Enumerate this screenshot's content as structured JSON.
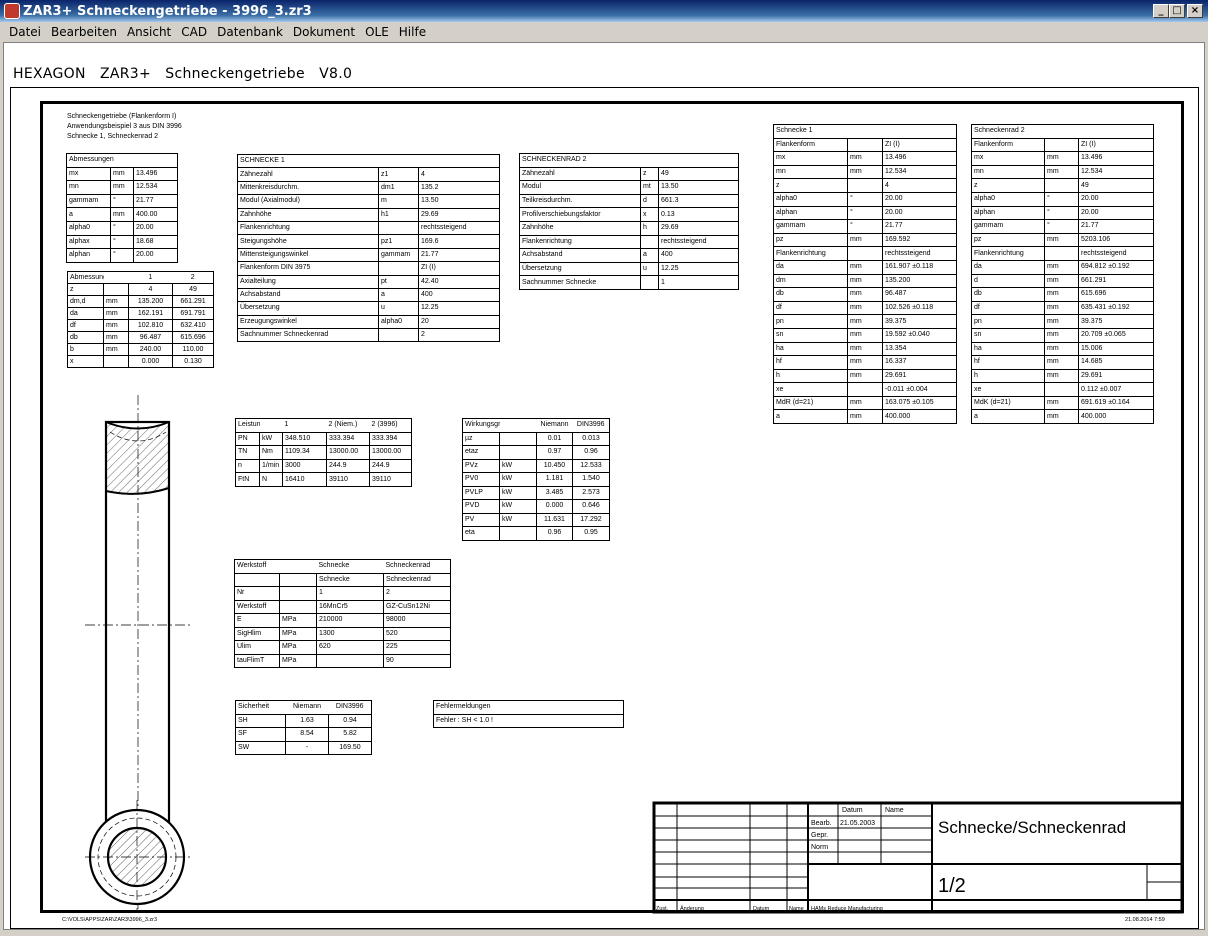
{
  "window": {
    "title": "ZAR3+  Schneckengetriebe  -  3996_3.zr3",
    "minimize": "_",
    "maximize": "□",
    "close": "×"
  },
  "menu": [
    "Datei",
    "Bearbeiten",
    "Ansicht",
    "CAD",
    "Datenbank",
    "Dokument",
    "OLE",
    "Hilfe"
  ],
  "app_heading": "HEXAGON   ZAR3+   Schneckengetriebe   V8.0",
  "notes": [
    "Schneckengetriebe (Flankenform I)",
    "Anwendungsbeispiel 3 aus DIN 3996",
    "Schnecke 1, Schneckenrad 2"
  ],
  "tables": {
    "abm1": {
      "head": [
        "Abmessungen"
      ],
      "rows": [
        [
          "mx",
          "mm",
          "13.496"
        ],
        [
          "mn",
          "mm",
          "12.534"
        ],
        [
          "gammam",
          "°",
          "21.77"
        ],
        [
          "a",
          "mm",
          "400.00"
        ],
        [
          "alpha0",
          "°",
          "20.00"
        ],
        [
          "alphax",
          "°",
          "18.68"
        ],
        [
          "alphan",
          "°",
          "20.00"
        ]
      ]
    },
    "abm2": {
      "head": [
        "Abmessungen",
        "",
        "1",
        "2"
      ],
      "rows": [
        [
          "z",
          "",
          "4",
          "49"
        ],
        [
          "dm,d",
          "mm",
          "135.200",
          "661.291"
        ],
        [
          "da",
          "mm",
          "162.191",
          "691.791"
        ],
        [
          "df",
          "mm",
          "102.810",
          "632.410"
        ],
        [
          "db",
          "mm",
          "96.487",
          "615.696"
        ],
        [
          "b",
          "mm",
          "240.00",
          "110.00"
        ],
        [
          "x",
          "",
          "0.000",
          "0.130"
        ]
      ]
    },
    "schnecke1": {
      "head": [
        "SCHNECKE 1"
      ],
      "rows": [
        [
          "Zähnezahl",
          "z1",
          "4"
        ],
        [
          "Mittenkreisdurchm.",
          "dm1",
          "135.2"
        ],
        [
          "Modul (Axialmodul)",
          "m",
          "13.50"
        ],
        [
          "Zahnhöhe",
          "h1",
          "29.69"
        ],
        [
          "Flankenrichtung",
          "",
          "rechtssteigend"
        ],
        [
          "Steigungshöhe",
          "pz1",
          "169.6"
        ],
        [
          "Mittensteigungswinkel",
          "gammam",
          "21.77"
        ],
        [
          "Flankenform DIN 3975",
          "",
          "ZI (I)"
        ],
        [
          "Axialteilung",
          "pt",
          "42.40"
        ],
        [
          "Achsabstand",
          "a",
          "400"
        ],
        [
          "Übersetzung",
          "u",
          "12.25"
        ],
        [
          "Erzeugungswinkel",
          "alpha0",
          "20"
        ],
        [
          "Sachnummer Schneckenrad",
          "",
          "2"
        ]
      ]
    },
    "rad2": {
      "head": [
        "SCHNECKENRAD 2"
      ],
      "rows": [
        [
          "Zähnezahl",
          "z",
          "49"
        ],
        [
          "Modul",
          "mt",
          "13.50"
        ],
        [
          "Teilkreisdurchm.",
          "d",
          "661.3"
        ],
        [
          "Profilverschiebungsfaktor",
          "x",
          "0.13"
        ],
        [
          "Zahnhöhe",
          "h",
          "29.69"
        ],
        [
          "Flankenrichtung",
          "",
          "rechtssteigend"
        ],
        [
          "Achsabstand",
          "a",
          "400"
        ],
        [
          "Übersetzung",
          "u",
          "12.25"
        ],
        [
          "Sachnummer Schnecke",
          "",
          "1"
        ]
      ]
    },
    "s1": {
      "head": [
        "Schnecke 1"
      ],
      "rows": [
        [
          "Flankenform",
          "",
          "ZI (I)"
        ],
        [
          "mx",
          "mm",
          "13.496"
        ],
        [
          "mn",
          "mm",
          "12.534"
        ],
        [
          "z",
          "",
          "4"
        ],
        [
          "alpha0",
          "°",
          "20.00"
        ],
        [
          "alphan",
          "°",
          "20.00"
        ],
        [
          "gammam",
          "°",
          "21.77"
        ],
        [
          "pz",
          "mm",
          "169.592"
        ],
        [
          "Flankenrichtung",
          "",
          "rechtssteigend"
        ],
        [
          "da",
          "mm",
          "161.907 ±0.118"
        ],
        [
          "dm",
          "mm",
          "135.200"
        ],
        [
          "db",
          "mm",
          "96.487"
        ],
        [
          "df",
          "mm",
          "102.526 ±0.118"
        ],
        [
          "pn",
          "mm",
          "39.375"
        ],
        [
          "sn",
          "mm",
          "19.592 ±0.040"
        ],
        [
          "ha",
          "mm",
          "13.354"
        ],
        [
          "hf",
          "mm",
          "16.337"
        ],
        [
          "h",
          "mm",
          "29.691"
        ],
        [
          "xe",
          "",
          "-0.011 ±0.004"
        ],
        [
          "MdR (d=21)",
          "mm",
          "163.075 ±0.105"
        ],
        [
          "a",
          "mm",
          "400.000"
        ]
      ]
    },
    "r2": {
      "head": [
        "Schneckenrad 2"
      ],
      "rows": [
        [
          "Flankenform",
          "",
          "ZI (I)"
        ],
        [
          "mx",
          "mm",
          "13.496"
        ],
        [
          "mn",
          "mm",
          "12.534"
        ],
        [
          "z",
          "",
          "49"
        ],
        [
          "alpha0",
          "°",
          "20.00"
        ],
        [
          "alphan",
          "°",
          "20.00"
        ],
        [
          "gammam",
          "°",
          "21.77"
        ],
        [
          "pz",
          "mm",
          "5203.106"
        ],
        [
          "Flankenrichtung",
          "",
          "rechtssteigend"
        ],
        [
          "da",
          "mm",
          "694.812 ±0.192"
        ],
        [
          "d",
          "mm",
          "661.291"
        ],
        [
          "db",
          "mm",
          "615.696"
        ],
        [
          "df",
          "mm",
          "635.431 ±0.192"
        ],
        [
          "pn",
          "mm",
          "39.375"
        ],
        [
          "sn",
          "mm",
          "20.709 ±0.065"
        ],
        [
          "ha",
          "mm",
          "15.006"
        ],
        [
          "hf",
          "mm",
          "14.685"
        ],
        [
          "h",
          "mm",
          "29.691"
        ],
        [
          "xe",
          "",
          "0.112 ±0.007"
        ],
        [
          "MdK (d=21)",
          "mm",
          "691.619 ±0.164"
        ],
        [
          "a",
          "mm",
          "400.000"
        ]
      ]
    },
    "leistung": {
      "head": [
        "Leistung",
        "",
        "1",
        "2 (Niem.)",
        "2 (3996)"
      ],
      "rows": [
        [
          "PN",
          "kW",
          "348.510",
          "333.394",
          "333.394"
        ],
        [
          "TN",
          "Nm",
          "1109.34",
          "13000.00",
          "13000.00"
        ],
        [
          "n",
          "1/min",
          "3000",
          "244.9",
          "244.9"
        ],
        [
          "FtN",
          "N",
          "16410",
          "39110",
          "39110"
        ]
      ]
    },
    "wirkung": {
      "head": [
        "Wirkungsgrad",
        "",
        "Niemann",
        "DIN3996"
      ],
      "rows": [
        [
          "µz",
          "",
          "0.01",
          "0.013"
        ],
        [
          "etaz",
          "",
          "0.97",
          "0.96"
        ],
        [
          "PVz",
          "kW",
          "10.450",
          "12.533"
        ],
        [
          "PV0",
          "kW",
          "1.181",
          "1.540"
        ],
        [
          "PVLP",
          "kW",
          "3.485",
          "2.573"
        ],
        [
          "PVD",
          "kW",
          "0.000",
          "0.646"
        ],
        [
          "PV",
          "kW",
          "11.631",
          "17.292"
        ],
        [
          "eta",
          "",
          "0.96",
          "0.95"
        ]
      ]
    },
    "werkstoff": {
      "head": [
        "Werkstoff",
        "",
        "Schnecke",
        "Schneckenrad"
      ],
      "rows": [
        [
          "",
          "",
          "Schnecke",
          "Schneckenrad"
        ],
        [
          "Nr",
          "",
          "1",
          "2"
        ],
        [
          "Werkstoff",
          "",
          "16MnCr5",
          "GZ-CuSn12Ni"
        ],
        [
          "E",
          "MPa",
          "210000",
          "98000"
        ],
        [
          "SigHlim",
          "MPa",
          "1300",
          "520"
        ],
        [
          "Ulim",
          "MPa",
          "620",
          "225"
        ],
        [
          "tauFlimT",
          "MPa",
          "",
          "90"
        ]
      ]
    },
    "sicherheit": {
      "head": [
        "Sicherheit",
        "Niemann",
        "DIN3996"
      ],
      "rows": [
        [
          "SH",
          "1.63",
          "0.94"
        ],
        [
          "SF",
          "8.54",
          "5.82"
        ],
        [
          "SW",
          "-",
          "169.50"
        ]
      ]
    },
    "fehler": {
      "head": [
        "Fehlermeldungen"
      ],
      "rows": [
        [
          "Fehler : SH < 1.0 !"
        ]
      ]
    }
  },
  "titleblock": {
    "datum": "Datum",
    "name": "Name",
    "bearb": "Bearb.",
    "bearb_date": "21.05.2003",
    "gepr": "Gepr.",
    "norm": "Norm",
    "zust": "Zust.",
    "aenderung": "Änderung",
    "datum2": "Datum",
    "name2": "Name",
    "company": "HAMs Reduce Manufacturing",
    "title": "Schnecke/Schneckenrad",
    "sheet": "1/2"
  },
  "footer": {
    "path": "C:\\VOLS\\APPS\\ZAR\\ZAR3\\3996_3.zr3",
    "timestamp": "21.08.2014 7:59"
  }
}
